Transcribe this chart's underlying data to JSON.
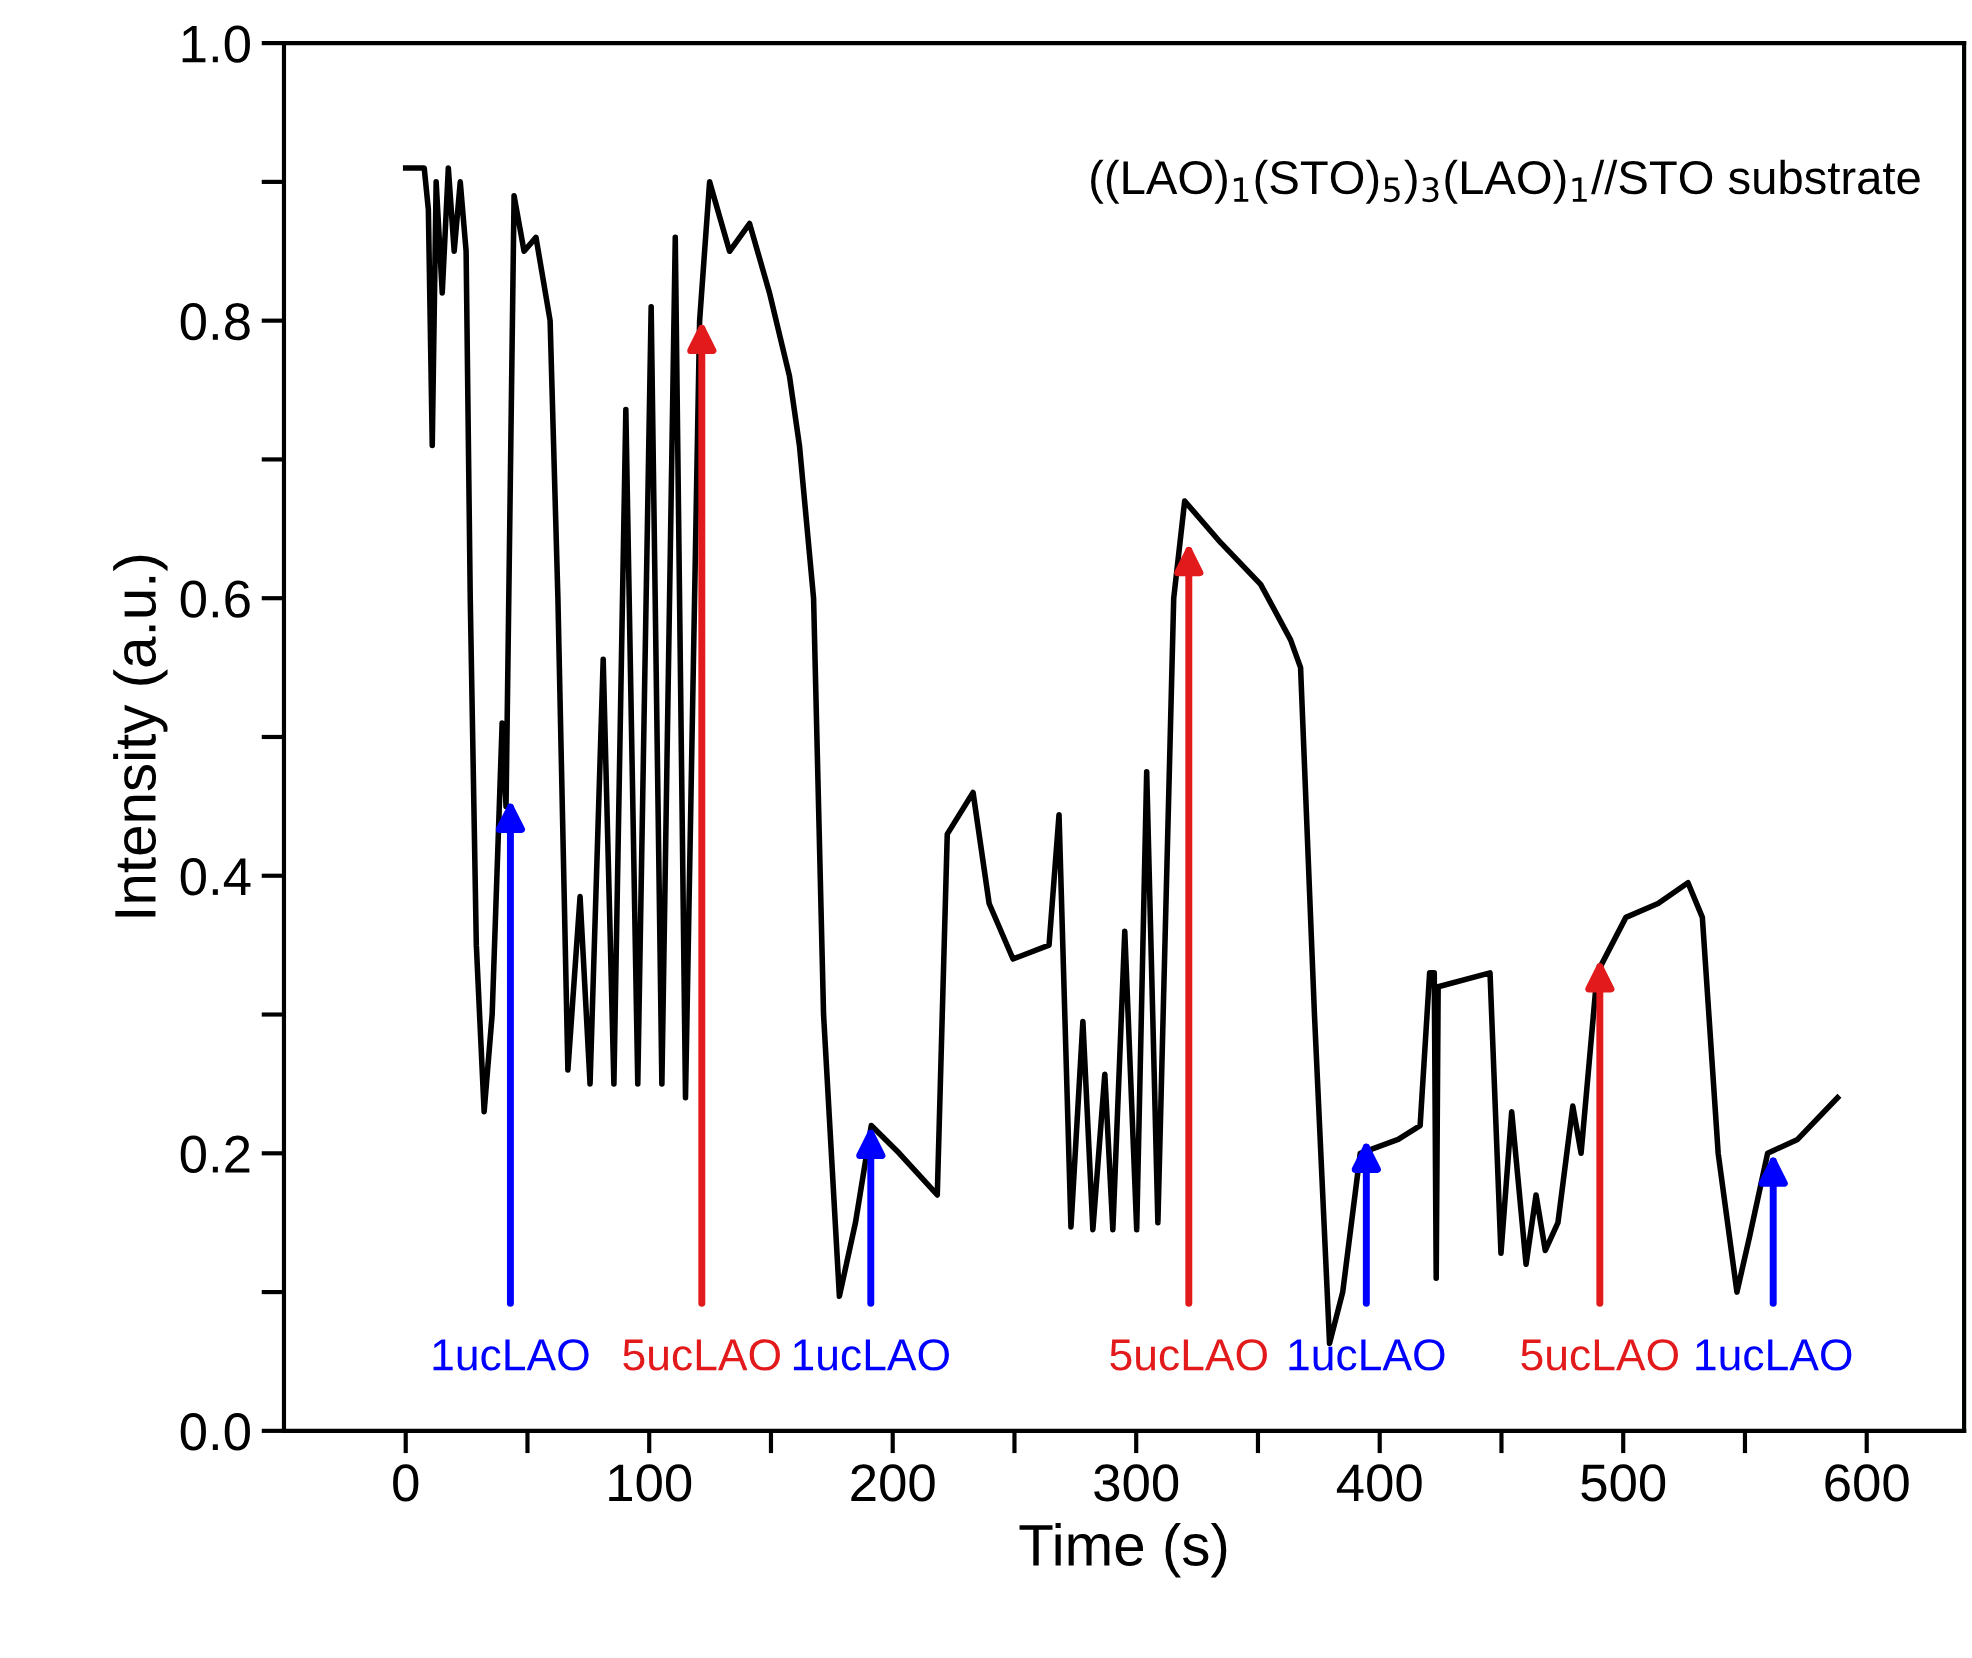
{
  "chart_data": {
    "type": "line",
    "xlabel": "Time (s)",
    "ylabel": "Intensity (a.u.)",
    "series": [
      {
        "color": "#000000",
        "x": [
          0,
          7.6,
          9.3,
          10.9,
          12.5,
          15.0,
          17.5,
          19.9,
          22.4,
          24.8,
          26.5,
          29.0,
          32.2,
          35.5,
          39.6,
          41.2,
          44.5,
          48.6,
          53.5,
          59.3,
          62.5,
          66.6,
          71.6,
          75.7,
          81.1,
          85.5,
          90.4,
          95.3,
          100.8,
          105.2,
          110.7,
          114.9,
          120.7,
          124.8,
          133.0,
          141.2,
          149.4,
          157.6,
          161.7,
          167.5,
          171.6,
          178.1,
          184.7,
          191.2,
          202.7,
          218.3,
          222.4,
          233.0,
          239.6,
          249.4,
          264.2,
          268.3,
          273.2,
          278.1,
          282.2,
          287.1,
          290.4,
          295.3,
          300.2,
          304.3,
          308.9,
          315.4,
          319.9,
          334.7,
          351.1,
          363.4,
          367.5,
          373.2,
          379.4,
          384.8,
          392.0,
          407.6,
          416.6,
          420.5,
          422.4,
          423.2,
          424.0,
          445.3,
          449.8,
          454.2,
          460.1,
          464.2,
          468.0,
          473.2,
          479.3,
          482.7,
          489.3,
          501.1,
          514.3,
          526.6,
          532.5,
          539.0,
          546.7,
          551.9,
          559.3,
          571.6,
          588.0
        ],
        "values": [
          0.91,
          0.91,
          0.88,
          0.71,
          0.9,
          0.82,
          0.91,
          0.85,
          0.9,
          0.85,
          0.6,
          0.35,
          0.23,
          0.3,
          0.51,
          0.45,
          0.89,
          0.85,
          0.86,
          0.8,
          0.6,
          0.26,
          0.385,
          0.25,
          0.556,
          0.25,
          0.736,
          0.25,
          0.81,
          0.25,
          0.86,
          0.24,
          0.8,
          0.9,
          0.85,
          0.87,
          0.82,
          0.76,
          0.71,
          0.6,
          0.3,
          0.097,
          0.15,
          0.22,
          0.2,
          0.17,
          0.43,
          0.46,
          0.38,
          0.34,
          0.35,
          0.444,
          0.147,
          0.295,
          0.145,
          0.257,
          0.145,
          0.36,
          0.145,
          0.475,
          0.15,
          0.6,
          0.67,
          0.64,
          0.61,
          0.57,
          0.55,
          0.3,
          0.063,
          0.1,
          0.2,
          0.21,
          0.22,
          0.33,
          0.33,
          0.11,
          0.32,
          0.33,
          0.128,
          0.23,
          0.12,
          0.17,
          0.13,
          0.15,
          0.234,
          0.2,
          0.33,
          0.37,
          0.38,
          0.395,
          0.37,
          0.2,
          0.1,
          0.14,
          0.2,
          0.21,
          0.24
        ]
      }
    ],
    "xlim": [
      -50,
      640
    ],
    "xticks": [
      0,
      {
        "value": 50,
        "label": null
      },
      100,
      {
        "value": 150,
        "label": null
      },
      200,
      {
        "value": 250,
        "label": null
      },
      300,
      {
        "value": 350,
        "label": null
      },
      400,
      {
        "value": 450,
        "label": null
      },
      500,
      {
        "value": 550,
        "label": null
      },
      600
    ],
    "ylim": [
      0,
      1.0
    ],
    "yticks": [
      {
        "value": 0,
        "label": "0.0"
      },
      {
        "value": 0.1,
        "label": null
      },
      {
        "value": 0.2,
        "label": "0.2"
      },
      {
        "value": 0.3,
        "label": null
      },
      {
        "value": 0.4,
        "label": "0.4"
      },
      {
        "value": 0.5,
        "label": null
      },
      {
        "value": 0.6,
        "label": "0.6"
      },
      {
        "value": 0.7,
        "label": null
      },
      {
        "value": 0.8,
        "label": "0.8"
      },
      {
        "value": 0.9,
        "label": null
      },
      {
        "value": 1.0,
        "label": "1.0"
      }
    ],
    "annotations": [
      {
        "text": "1ucLAO",
        "x": 43,
        "y": 0.455
      },
      {
        "text": "5ucLAO",
        "x": 121.6,
        "y": 0.8
      },
      {
        "text": "1ucLAO",
        "x": 191,
        "y": 0.22
      },
      {
        "text": "5ucLAO",
        "x": 321.6,
        "y": 0.64
      },
      {
        "text": "1ucLAO",
        "x": 394.5,
        "y": 0.21
      },
      {
        "text": "5ucLAO",
        "x": 490.4,
        "y": 0.34
      },
      {
        "text": "1ucLAO",
        "x": 561.6,
        "y": 0.2
      },
      "((LAO)$_{1}$(STO)$_{5}$)$_{3}$(LAO)$_{1}$//STO substrate"
    ],
    "grid": false,
    "legend": false,
    "marker": "none",
    "line_style": "solid"
  }
}
